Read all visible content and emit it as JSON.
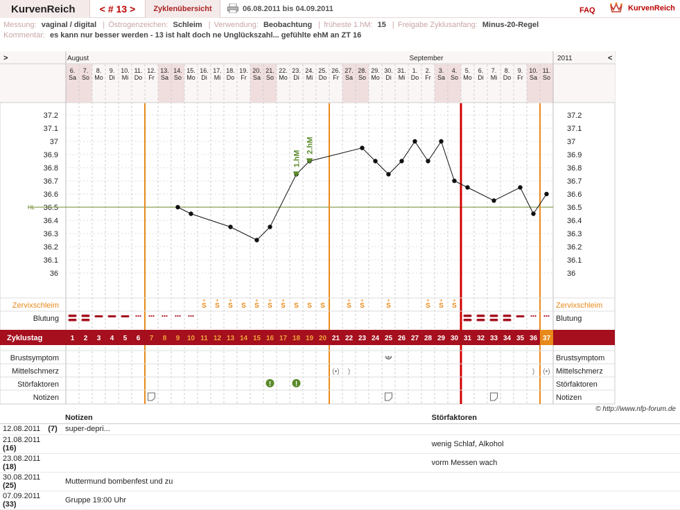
{
  "header": {
    "brand": "KurvenReich",
    "cycle_label": "< # 13 >",
    "overview_link": "Zyklenübersicht",
    "date_range": "06.08.2011 bis 04.09.2011",
    "faq": "FAQ",
    "logo_text": "KurvenReich"
  },
  "meta": {
    "messung_label": "Messung:",
    "messung_value": "vaginal / digital",
    "oestrogen_label": "Östrogenzeichen:",
    "oestrogen_value": "Schleim",
    "verwendung_label": "Verwendung:",
    "verwendung_value": "Beobachtung",
    "hm_label": "früheste 1.hM:",
    "hm_value": "15",
    "freigabe_label": "Freigabe Zyklusanfang:",
    "freigabe_value": "Minus-20-Regel",
    "kommentar_label": "Kommentar:",
    "kommentar_value": "es kann nur besser werden - 13 ist halt doch ne Unglückszahl... gefühlte ehM an ZT 16"
  },
  "chart_data": {
    "type": "line",
    "months": [
      {
        "label": "August"
      },
      {
        "label": "September"
      }
    ],
    "year_label": "2011",
    "nav_left": ">",
    "nav_right": "<",
    "days": [
      {
        "d": "6.",
        "w": "Sa",
        "we": true
      },
      {
        "d": "7.",
        "w": "So",
        "we": true
      },
      {
        "d": "8.",
        "w": "Mo"
      },
      {
        "d": "9.",
        "w": "Di"
      },
      {
        "d": "10.",
        "w": "Mi"
      },
      {
        "d": "11.",
        "w": "Do"
      },
      {
        "d": "12.",
        "w": "Fr"
      },
      {
        "d": "13.",
        "w": "Sa",
        "we": true
      },
      {
        "d": "14.",
        "w": "So",
        "we": true
      },
      {
        "d": "15.",
        "w": "Mo"
      },
      {
        "d": "16.",
        "w": "Di"
      },
      {
        "d": "17.",
        "w": "Mi"
      },
      {
        "d": "18.",
        "w": "Do"
      },
      {
        "d": "19.",
        "w": "Fr"
      },
      {
        "d": "20.",
        "w": "Sa",
        "we": true
      },
      {
        "d": "21.",
        "w": "So",
        "we": true
      },
      {
        "d": "22.",
        "w": "Mo"
      },
      {
        "d": "23.",
        "w": "Di"
      },
      {
        "d": "24.",
        "w": "Mi"
      },
      {
        "d": "25.",
        "w": "Do"
      },
      {
        "d": "26.",
        "w": "Fr"
      },
      {
        "d": "27.",
        "w": "Sa",
        "we": true
      },
      {
        "d": "28.",
        "w": "So",
        "we": true
      },
      {
        "d": "29.",
        "w": "Mo"
      },
      {
        "d": "30.",
        "w": "Di"
      },
      {
        "d": "31.",
        "w": "Mi"
      },
      {
        "d": "1.",
        "w": "Do"
      },
      {
        "d": "2.",
        "w": "Fr"
      },
      {
        "d": "3.",
        "w": "Sa",
        "we": true
      },
      {
        "d": "4.",
        "w": "So",
        "we": true
      },
      {
        "d": "5.",
        "w": "Mo"
      },
      {
        "d": "6.",
        "w": "Di"
      },
      {
        "d": "7.",
        "w": "Mi"
      },
      {
        "d": "8.",
        "w": "Do"
      },
      {
        "d": "9.",
        "w": "Fr"
      },
      {
        "d": "10.",
        "w": "Sa",
        "we": true
      },
      {
        "d": "11.",
        "w": "So",
        "we": true
      }
    ],
    "cycle_days": [
      "1",
      "2",
      "3",
      "4",
      "5",
      "6",
      "7",
      "8",
      "9",
      "10",
      "11",
      "12",
      "13",
      "14",
      "15",
      "16",
      "17",
      "18",
      "19",
      "20",
      "21",
      "22",
      "23",
      "24",
      "25",
      "26",
      "27",
      "28",
      "29",
      "30",
      "31",
      "32",
      "33",
      "34",
      "35",
      "36",
      "37"
    ],
    "y_ticks": [
      "37.2",
      "37.1",
      "37",
      "36.9",
      "36.8",
      "36.7",
      "36.6",
      "36.5",
      "36.4",
      "36.3",
      "36.2",
      "36.1",
      "36"
    ],
    "ylim": [
      36.0,
      37.2
    ],
    "hl_label": "HL",
    "hl_value": 36.5,
    "temperature": [
      null,
      null,
      null,
      null,
      null,
      null,
      null,
      null,
      36.5,
      36.45,
      null,
      null,
      36.35,
      null,
      36.25,
      36.35,
      null,
      36.75,
      36.85,
      null,
      null,
      null,
      36.95,
      36.85,
      36.75,
      36.85,
      37.0,
      36.85,
      37.0,
      36.7,
      36.65,
      null,
      36.55,
      null,
      36.65,
      36.45,
      36.6
    ],
    "markers": [
      {
        "label": "1.hM",
        "cycle_day": 18
      },
      {
        "label": "2.hM",
        "cycle_day": 19
      }
    ],
    "rows": {
      "cervix": "Zervixschleim",
      "bleeding": "Blutung",
      "cycle": "Zyklustag",
      "breast": "Brustsymptom",
      "mittelschmerz": "Mittelschmerz",
      "disturbance": "Störfaktoren",
      "notes": "Notizen"
    },
    "cervix_codes": [
      "",
      "",
      "",
      "",
      "",
      "",
      "",
      "",
      "",
      "",
      "S+",
      "S+",
      "S+",
      "S",
      "S+",
      "S+",
      "S+",
      "S",
      "S",
      "S",
      "",
      "S+",
      "S+",
      "",
      "S+",
      "",
      "",
      "S+",
      "S+",
      "S+",
      "",
      "",
      "",
      "",
      "",
      "",
      ""
    ],
    "bleeding_codes": [
      "heavy",
      "heavy",
      "medium",
      "medium",
      "medium",
      "spot",
      "spot",
      "spot",
      "spot",
      "spot",
      "",
      "",
      "",
      "",
      "",
      "",
      "",
      "",
      "",
      "",
      "",
      "",
      "",
      "",
      "",
      "",
      "",
      "",
      "",
      "",
      "heavy",
      "heavy",
      "heavy",
      "heavy",
      "medium",
      "spot",
      "spot"
    ],
    "breast_days": [
      25
    ],
    "mittelschmerz_days": [
      21,
      22,
      36,
      37
    ],
    "disturbance_days": [
      16,
      18
    ],
    "note_days": [
      7,
      25,
      33
    ]
  },
  "notes_table": {
    "col_notes": "Notizen",
    "col_disturbances": "Störfaktoren",
    "rows": [
      {
        "date": "12.08.2011",
        "day": "(7)",
        "note": "super-depri...",
        "disturbance": ""
      },
      {
        "date": "21.08.2011",
        "day": "(16)",
        "note": "",
        "disturbance": "wenig Schlaf, Alkohol"
      },
      {
        "date": "23.08.2011",
        "day": "(18)",
        "note": "",
        "disturbance": "vorm Messen wach"
      },
      {
        "date": "30.08.2011",
        "day": "(25)",
        "note": "Muttermund bombenfest und zu",
        "disturbance": ""
      },
      {
        "date": "07.09.2011",
        "day": "(33)",
        "note": "Gruppe 19:00 Uhr",
        "disturbance": ""
      }
    ]
  },
  "copyright": "© http://www.nfp-forum.de",
  "colors": {
    "accent": "#a50f1e",
    "orange": "#e88a1a",
    "hl": "#6d8a2d",
    "green": "#5a8a2a"
  }
}
